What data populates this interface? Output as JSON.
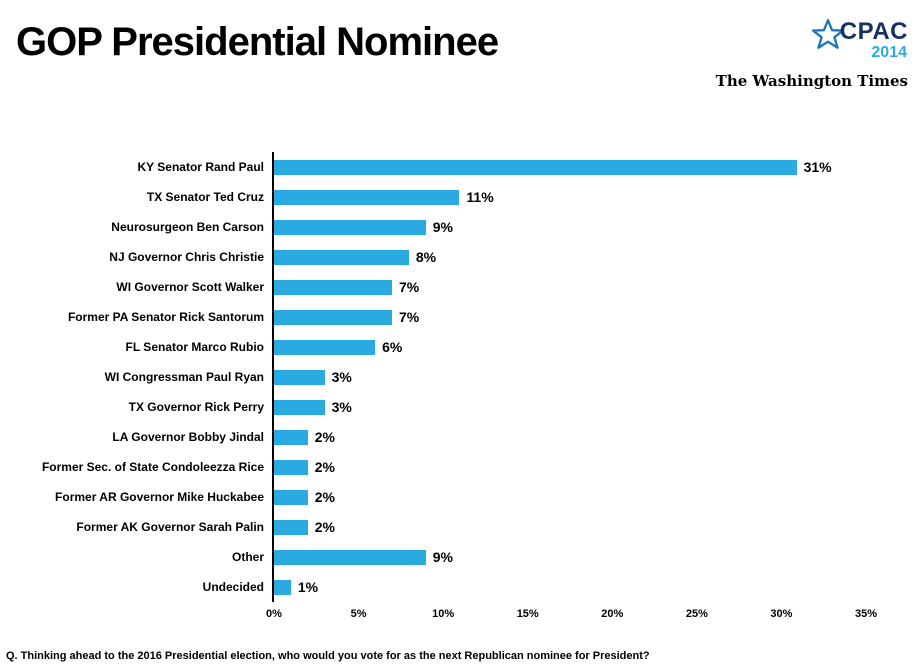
{
  "chart_data": {
    "type": "bar",
    "orientation": "horizontal",
    "title": "GOP Presidential Nominee",
    "categories": [
      "KY Senator Rand Paul",
      "TX Senator Ted Cruz",
      "Neurosurgeon Ben Carson",
      "NJ Governor Chris Christie",
      "WI Governor Scott Walker",
      "Former PA Senator Rick Santorum",
      "FL Senator Marco Rubio",
      "WI Congressman Paul Ryan",
      "TX Governor Rick Perry",
      "LA Governor Bobby Jindal",
      "Former Sec. of State Condoleezza Rice",
      "Former AR Governor Mike Huckabee",
      "Former AK Governor Sarah Palin",
      "Other",
      "Undecided"
    ],
    "values": [
      31,
      11,
      9,
      8,
      7,
      7,
      6,
      3,
      3,
      2,
      2,
      2,
      2,
      9,
      1
    ],
    "value_labels": [
      "31%",
      "11%",
      "9%",
      "8%",
      "7%",
      "7%",
      "6%",
      "3%",
      "3%",
      "2%",
      "2%",
      "2%",
      "2%",
      "9%",
      "1%"
    ],
    "xlim": [
      0,
      35
    ],
    "x_ticks": [
      "0%",
      "5%",
      "10%",
      "15%",
      "20%",
      "25%",
      "30%",
      "35%"
    ],
    "xlabel": "",
    "ylabel": "",
    "grid": false,
    "legend": false,
    "bar_color": "#29ABE2",
    "axis_color": "#000000"
  },
  "header": {
    "cpac": {
      "name": "CPAC",
      "year": "2014"
    },
    "publisher": "The Washington Times"
  },
  "footer": {
    "question": "Q. Thinking ahead to the 2016 Presidential election, who would you vote for as the next Republican nominee for President?"
  }
}
